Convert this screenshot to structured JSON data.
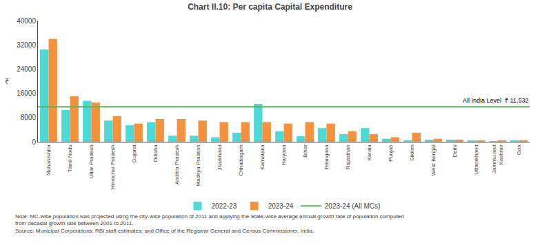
{
  "chart_data": {
    "type": "bar",
    "title": "Chart II.10: Per capita Capital Expenditure",
    "ylabel": "₹",
    "categories": [
      "Maharashtra",
      "Tamil Nadu",
      "Uttar Pradesh",
      "Himachal Pradesh",
      "Gujarat",
      "Odisha",
      "Andhra Pradesh",
      "Madhya Pradesh",
      "Jharkhand",
      "Chhattisgarh",
      "Karnataka",
      "Haryana",
      "Bihar",
      "Telangana",
      "Rajasthan",
      "Kerala",
      "Punjab",
      "Sikkim",
      "West Bengal",
      "Delhi",
      "Uttarakhand",
      "Jammu and\nKashmir",
      "Goa"
    ],
    "series": [
      {
        "name": "2022-23",
        "color": "#4dd9d5",
        "values": [
          30500,
          10500,
          13500,
          7000,
          5500,
          6500,
          2000,
          2000,
          1500,
          3000,
          12500,
          3500,
          1800,
          4500,
          2500,
          4500,
          1000,
          500,
          700,
          700,
          400,
          200,
          300
        ]
      },
      {
        "name": "2023-24",
        "color": "#f5923e",
        "values": [
          34000,
          15000,
          13000,
          8500,
          6000,
          7500,
          7500,
          7000,
          6500,
          6500,
          6500,
          6000,
          6500,
          6000,
          3500,
          2500,
          1500,
          3000,
          1000,
          700,
          400,
          300,
          500
        ]
      }
    ],
    "reference_line": {
      "name": "2023-24 (All MCs)",
      "value": 11532,
      "color": "#5ab55a",
      "label": "All India Level  ₹ 11,532"
    },
    "ylim": [
      0,
      40000
    ],
    "yticks": [
      0,
      8000,
      16000,
      24000,
      32000,
      40000
    ],
    "grid": false,
    "note": "Note: MC-wise population was projected using the city-wise population of 2011 and applying the State-wise average annual growth rate of population computed\nfrom decadal growth rate between 2001 to 2011.\nSource: Municipal Corporations; RBI staff estimates; and Office of the Registrar General and Census Commissioner, India."
  }
}
